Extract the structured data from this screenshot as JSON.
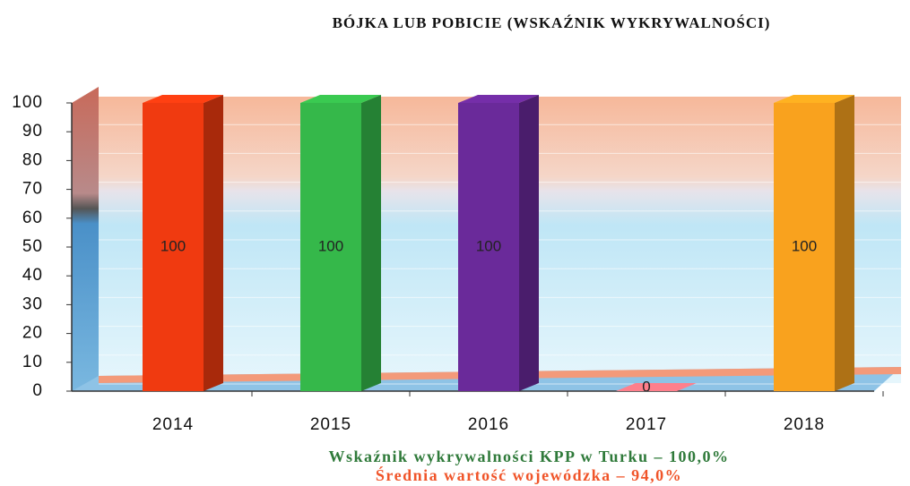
{
  "chart_data": {
    "type": "bar3d",
    "title": "BÓJKA LUB POBICIE (WSKAŹNIK WYKRYWALNOŚCI)",
    "categories": [
      "2014",
      "2015",
      "2016",
      "2017",
      "2018"
    ],
    "values": [
      100,
      100,
      100,
      0,
      100
    ],
    "colors": [
      "#f03a10",
      "#35b84a",
      "#6a2a9a",
      "#e8737f",
      "#f9a21e"
    ],
    "ylim": [
      0,
      100
    ],
    "yticks": [
      0,
      10,
      20,
      30,
      40,
      50,
      60,
      70,
      80,
      90,
      100
    ],
    "grid": true,
    "annotations": [
      {
        "text": "Wskaźnik wykrywalności KPP w Turku – 100,0%",
        "color": "#2f7a3a"
      },
      {
        "text": "Średnia wartość wojewódzka – 94,0%",
        "color": "#f0552a"
      }
    ]
  }
}
